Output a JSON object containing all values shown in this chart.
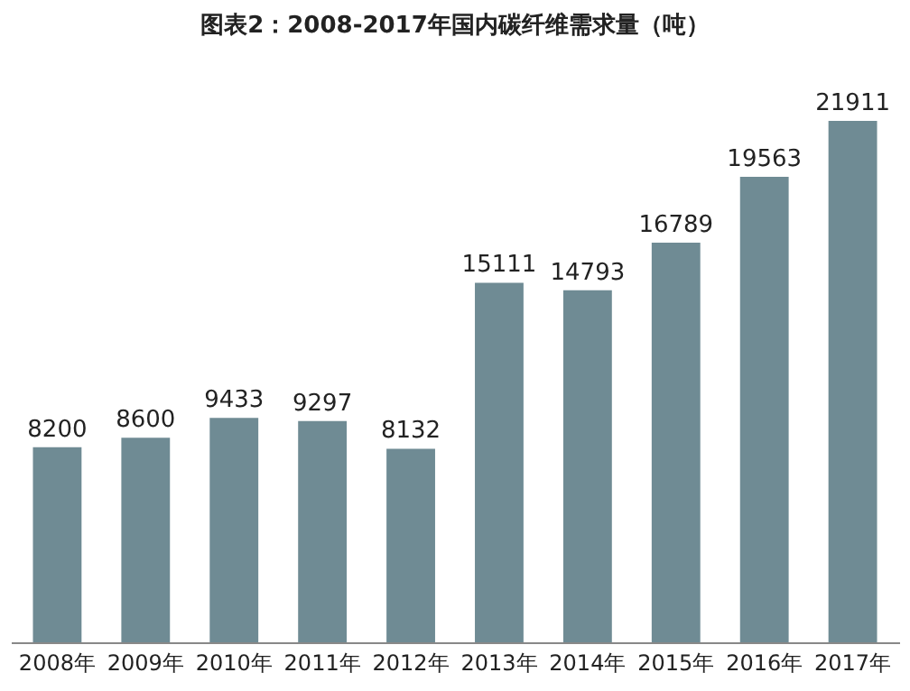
{
  "chart_data": {
    "type": "bar",
    "title": "图表2：2008-2017年国内碳纤维需求量（吨）",
    "categories": [
      "2008年",
      "2009年",
      "2010年",
      "2011年",
      "2012年",
      "2013年",
      "2014年",
      "2015年",
      "2016年",
      "2017年"
    ],
    "values": [
      8200,
      8600,
      9433,
      9297,
      8132,
      15111,
      14793,
      16789,
      19563,
      21911
    ],
    "color": "#6f8b94",
    "data_labels": true
  }
}
